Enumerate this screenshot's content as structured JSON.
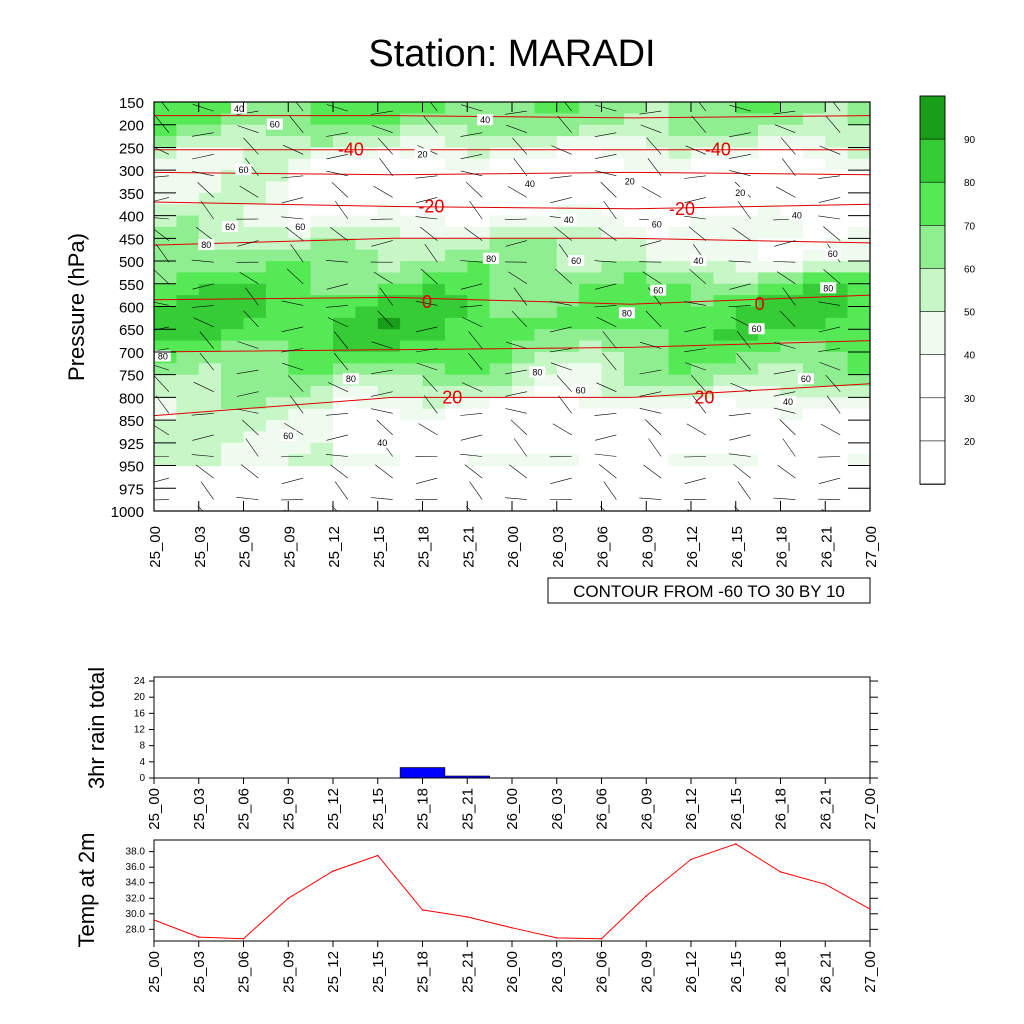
{
  "title": "Station: MARADI",
  "colors": {
    "levels": [
      "#ffffff",
      "#ffffff",
      "#ffffff",
      "#eefbee",
      "#c7f7c7",
      "#8fee8f",
      "#55ea55",
      "#36cc36",
      "#1a9e1a"
    ],
    "red": "#e00000",
    "rain_bar": "#0000ff",
    "line": "#ff0000"
  },
  "main": {
    "ylabel": "Pressure (hPa)",
    "pressure_levels": [
      "150",
      "200",
      "250",
      "300",
      "350",
      "400",
      "450",
      "500",
      "550",
      "600",
      "650",
      "700",
      "750",
      "800",
      "850",
      "925",
      "950",
      "975",
      "1000"
    ],
    "time_labels": [
      "25_00",
      "25_03",
      "25_06",
      "25_09",
      "25_12",
      "25_15",
      "25_18",
      "25_21",
      "26_00",
      "26_03",
      "26_06",
      "26_09",
      "26_12",
      "26_15",
      "26_18",
      "26_21",
      "27_00"
    ],
    "info_label": "CONTOUR FROM -60 TO 30 BY 10",
    "temp_contour_labels": [
      {
        "text": "-40",
        "time": 13.2,
        "level": 2.1
      },
      {
        "text": "-40",
        "time": 37.8,
        "level": 2.1
      },
      {
        "text": "-20",
        "time": 18.6,
        "level": 4.6
      },
      {
        "text": "-20",
        "time": 35.4,
        "level": 4.7
      },
      {
        "text": "0",
        "time": 18.3,
        "level": 8.8
      },
      {
        "text": "0",
        "time": 40.6,
        "level": 8.9
      },
      {
        "text": "20",
        "time": 20.0,
        "level": 13.0
      },
      {
        "text": "20",
        "time": 36.9,
        "level": 13.0
      }
    ],
    "rh_contour_labels": [
      {
        "text": "40",
        "time": 5.7,
        "level": 0.3
      },
      {
        "text": "40",
        "time": 22.2,
        "level": 0.8
      },
      {
        "text": "60",
        "time": 8.1,
        "level": 1.0
      },
      {
        "text": "20",
        "time": 18.0,
        "level": 2.3
      },
      {
        "text": "60",
        "time": 6.0,
        "level": 3.0
      },
      {
        "text": "40",
        "time": 25.2,
        "level": 3.6
      },
      {
        "text": "20",
        "time": 31.9,
        "level": 3.5
      },
      {
        "text": "20",
        "time": 39.3,
        "level": 4.0
      },
      {
        "text": "40",
        "time": 43.1,
        "level": 5.0
      },
      {
        "text": "60",
        "time": 5.1,
        "level": 5.5
      },
      {
        "text": "60",
        "time": 9.8,
        "level": 5.5
      },
      {
        "text": "40",
        "time": 27.8,
        "level": 5.2
      },
      {
        "text": "60",
        "time": 33.7,
        "level": 5.4
      },
      {
        "text": "80",
        "time": 3.5,
        "level": 6.3
      },
      {
        "text": "80",
        "time": 22.6,
        "level": 6.9
      },
      {
        "text": "60",
        "time": 28.3,
        "level": 7.0
      },
      {
        "text": "40",
        "time": 36.5,
        "level": 7.0
      },
      {
        "text": "60",
        "time": 45.5,
        "level": 6.7
      },
      {
        "text": "80",
        "time": 31.7,
        "level": 9.3
      },
      {
        "text": "60",
        "time": 33.8,
        "level": 8.3
      },
      {
        "text": "80",
        "time": 45.2,
        "level": 8.2
      },
      {
        "text": "60",
        "time": 40.4,
        "level": 10.0
      },
      {
        "text": "80",
        "time": 0.6,
        "level": 11.2
      },
      {
        "text": "80",
        "time": 13.2,
        "level": 12.2
      },
      {
        "text": "80",
        "time": 25.7,
        "level": 11.9
      },
      {
        "text": "60",
        "time": 28.6,
        "level": 12.7
      },
      {
        "text": "60",
        "time": 43.7,
        "level": 12.2
      },
      {
        "text": "40",
        "time": 42.5,
        "level": 13.2
      },
      {
        "text": "60",
        "time": 9.0,
        "level": 14.7
      },
      {
        "text": "40",
        "time": 15.3,
        "level": 15.0
      }
    ]
  },
  "colorbar": {
    "labels": [
      "90",
      "80",
      "70",
      "60",
      "50",
      "40",
      "30",
      "20"
    ]
  },
  "rain": {
    "ylabel": "3hr rain total",
    "yticks": [
      "24",
      "20",
      "16",
      "12",
      "8",
      "4",
      "0"
    ]
  },
  "temp": {
    "ylabel": "Temp at 2m",
    "yticks": [
      "38.0",
      "36.0",
      "34.0",
      "32.0",
      "30.0",
      "28.0"
    ]
  },
  "chart_data": [
    {
      "type": "heatmap",
      "title": "Station: MARADI",
      "ylabel": "Pressure (hPa)",
      "xlabel": "",
      "x": [
        "25_00",
        "25_03",
        "25_06",
        "25_09",
        "25_12",
        "25_15",
        "25_18",
        "25_21",
        "26_00",
        "26_03",
        "26_06",
        "26_09",
        "26_12",
        "26_15",
        "26_18",
        "26_21",
        "27_00"
      ],
      "y": [
        "150",
        "200",
        "250",
        "300",
        "350",
        "400",
        "450",
        "500",
        "550",
        "600",
        "650",
        "700",
        "750",
        "800",
        "850",
        "925",
        "950",
        "975",
        "1000"
      ],
      "contour_range": [
        -60,
        30
      ],
      "contour_step": 10,
      "colorbar": [
        20,
        30,
        40,
        50,
        60,
        70,
        80,
        90
      ],
      "temperature_contours": [
        -40,
        -20,
        0,
        20
      ]
    },
    {
      "type": "bar",
      "ylabel": "3hr rain total",
      "categories": [
        "25_00",
        "25_03",
        "25_06",
        "25_09",
        "25_12",
        "25_15",
        "25_18",
        "25_21",
        "26_00",
        "26_03",
        "26_06",
        "26_09",
        "26_12",
        "26_15",
        "26_18",
        "26_21",
        "27_00"
      ],
      "values": [
        0,
        0,
        0,
        0,
        0,
        0,
        2.6,
        0.5,
        0,
        0,
        0,
        0,
        0,
        0,
        0,
        0,
        0
      ],
      "ylim": [
        0,
        25
      ]
    },
    {
      "type": "line",
      "ylabel": "Temp at 2m",
      "x": [
        "25_00",
        "25_03",
        "25_06",
        "25_09",
        "25_12",
        "25_15",
        "25_18",
        "25_21",
        "26_00",
        "26_03",
        "26_06",
        "26_09",
        "26_12",
        "26_15",
        "26_18",
        "26_21",
        "27_00"
      ],
      "series": [
        {
          "name": "Temp at 2m",
          "values": [
            29.2,
            27.0,
            26.8,
            32.0,
            35.5,
            37.5,
            30.5,
            29.6,
            28.2,
            26.9,
            26.8,
            32.3,
            37.0,
            39.0,
            35.4,
            33.8,
            30.6
          ]
        }
      ],
      "ylim": [
        26.5,
        39.5
      ]
    }
  ]
}
